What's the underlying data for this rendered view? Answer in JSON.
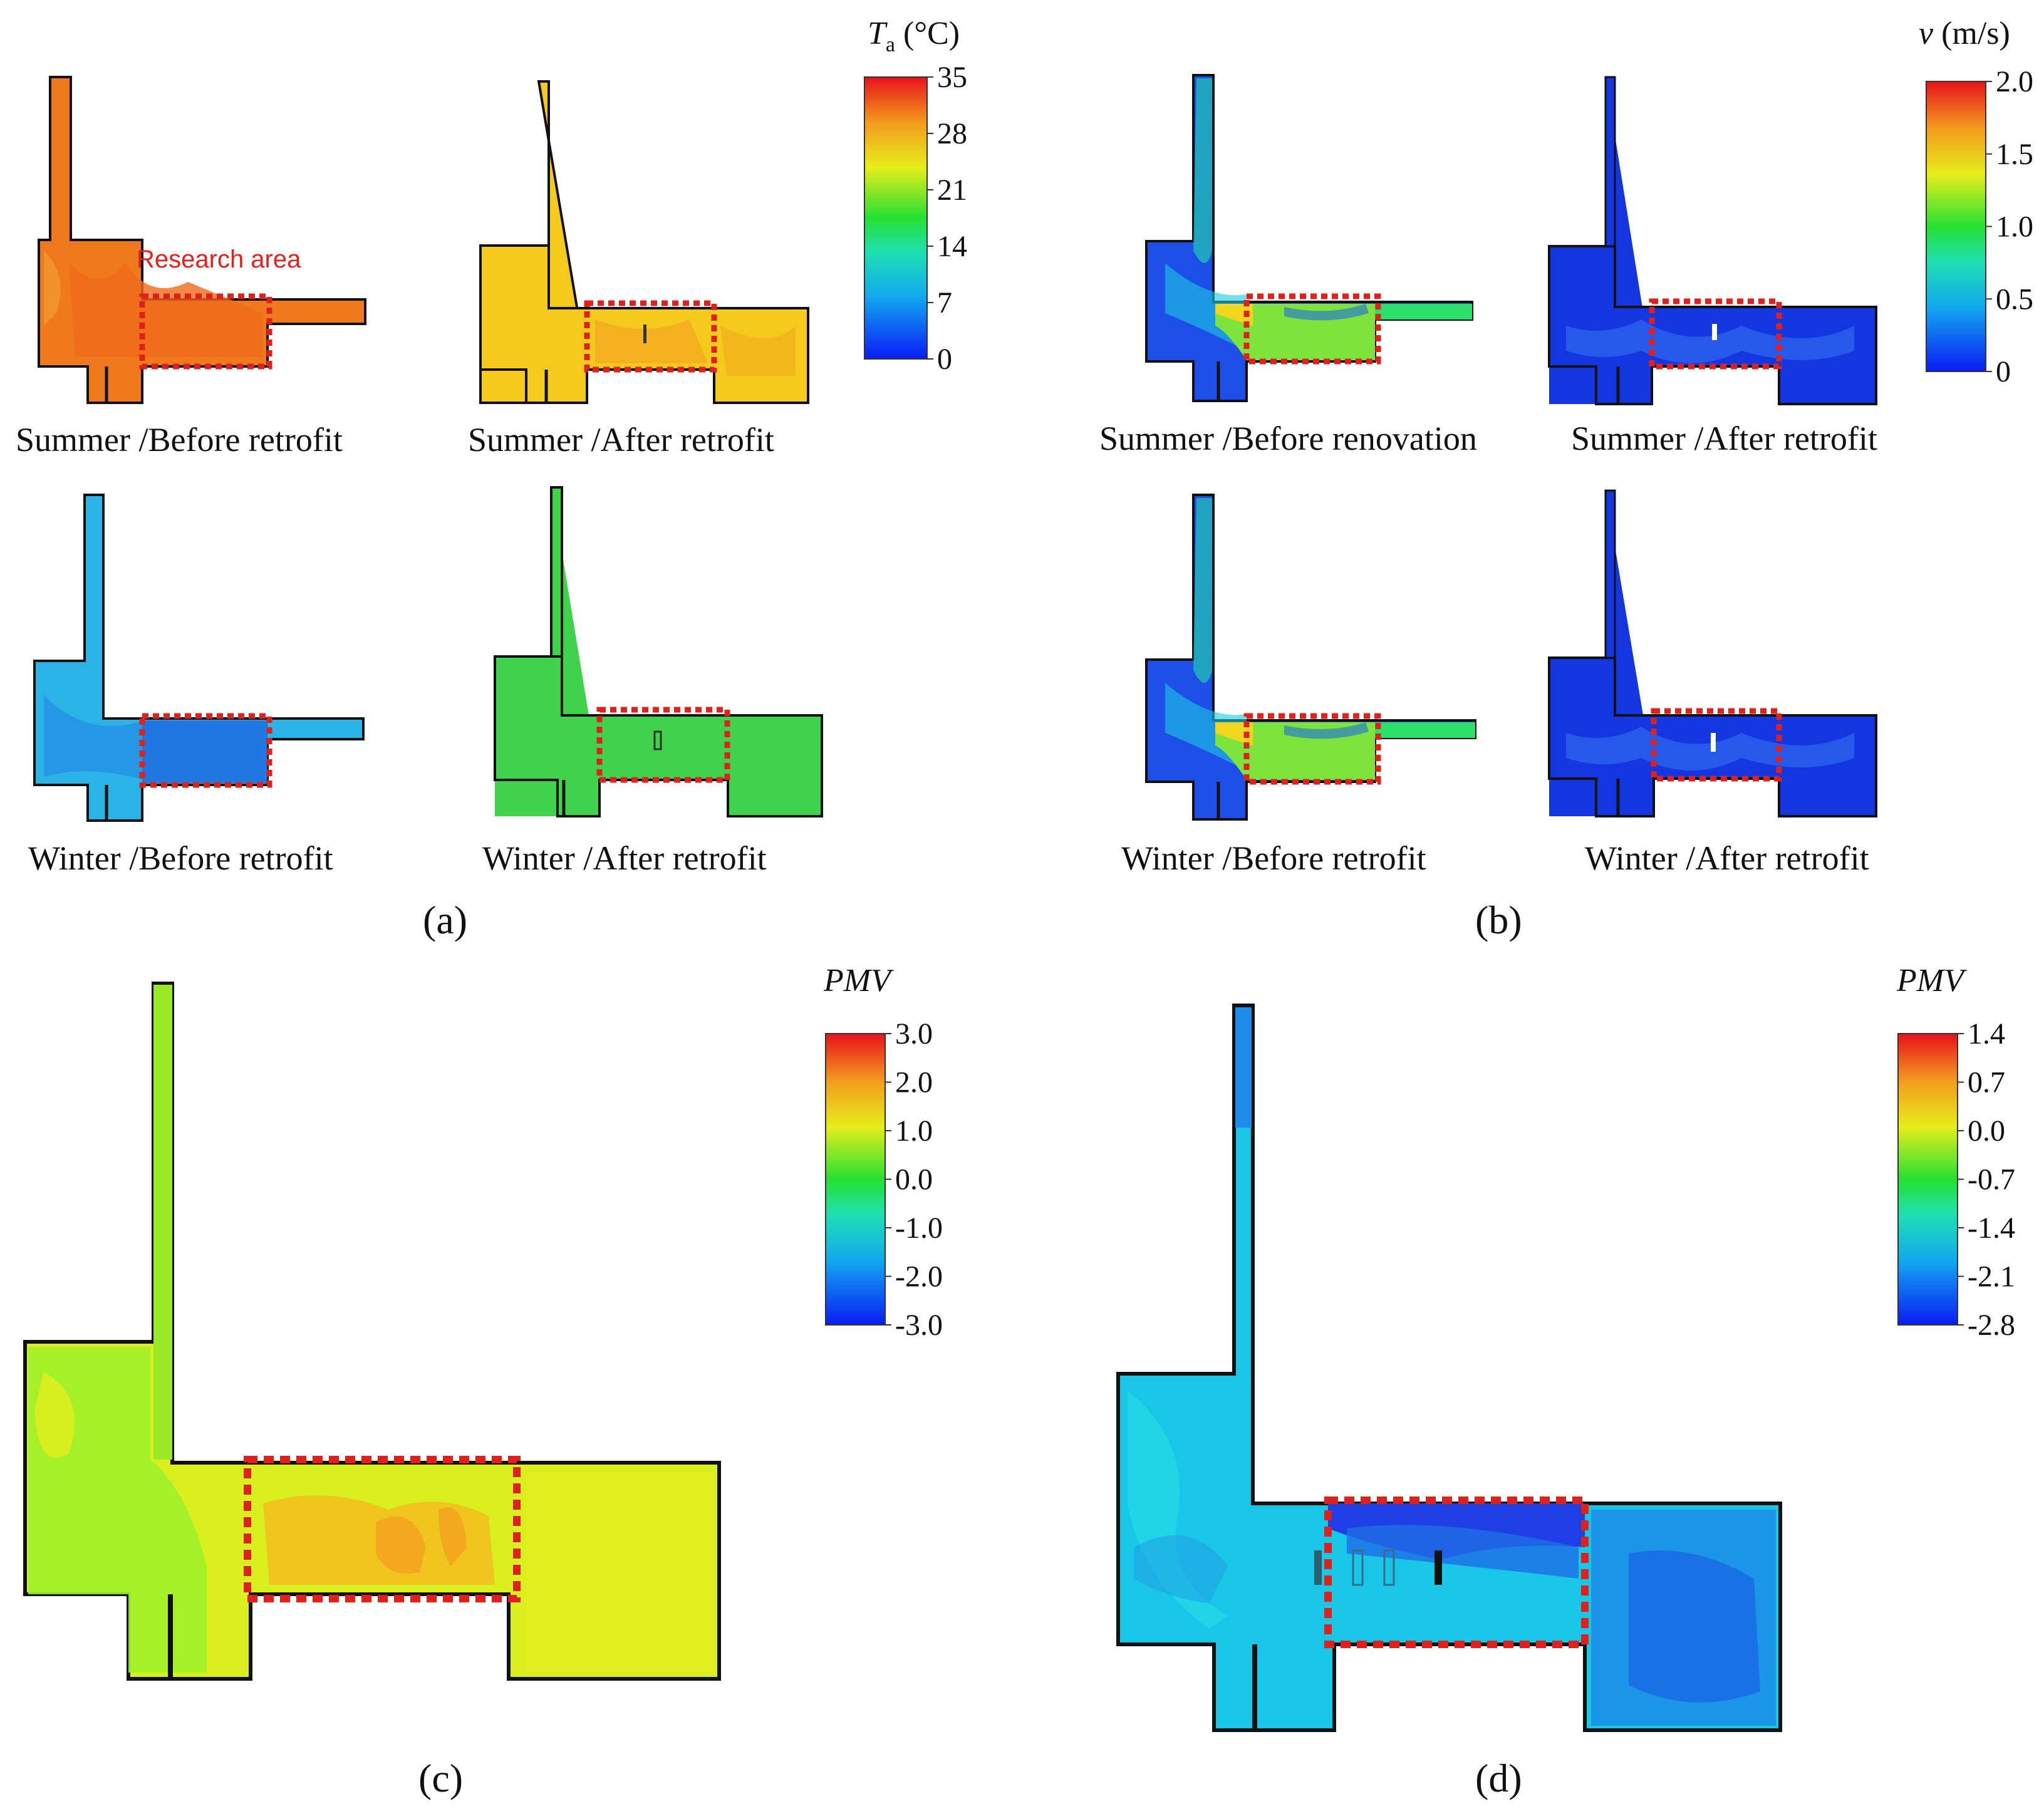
{
  "figure": {
    "panels": [
      {
        "id": "a",
        "letter": "(a)",
        "legend": {
          "title_symbol": "T",
          "title_sub": "a",
          "title_unit": " (°C)",
          "ticks": [
            "35",
            "28",
            "21",
            "14",
            "7",
            "0"
          ]
        },
        "maps": [
          {
            "caption": "Summer /Before retrofit",
            "fill": "#ef7a1e",
            "accent": "#f06a18",
            "annotation": "Research area"
          },
          {
            "caption": "Summer /After retrofit",
            "fill": "#f4cb1d",
            "accent": "#f2a81e"
          },
          {
            "caption": "Winter /Before retrofit",
            "fill": "#2ab3e7",
            "accent": "#1f7fe3"
          },
          {
            "caption": "Winter /After retrofit",
            "fill": "#3fd24a",
            "accent": "#5bd64a"
          }
        ]
      },
      {
        "id": "b",
        "letter": "(b)",
        "legend": {
          "title_symbol": "v",
          "title_unit": " (m/s)",
          "ticks": [
            "2.0",
            "1.5",
            "1.0",
            "0.5",
            "0"
          ]
        },
        "maps": [
          {
            "caption": "Summer /Before renovation",
            "fill": "#1d4fe8",
            "accent": "#7ee33a"
          },
          {
            "caption": "Summer /After retrofit",
            "fill": "#1436e0",
            "accent": "#2f6cf0"
          },
          {
            "caption": "Winter /Before retrofit",
            "fill": "#1d4fe8",
            "accent": "#7ee33a"
          },
          {
            "caption": "Winter /After retrofit",
            "fill": "#1436e0",
            "accent": "#2f6cf0"
          }
        ]
      },
      {
        "id": "c",
        "letter": "(c)",
        "legend": {
          "title": "PMV",
          "ticks": [
            "3.0",
            "2.0",
            "1.0",
            "0.0",
            "-1.0",
            "-2.0",
            "-3.0"
          ]
        },
        "maps": [
          {
            "fill": "#d9ef1f",
            "accent": "#f2a91e"
          }
        ]
      },
      {
        "id": "d",
        "letter": "(d)",
        "legend": {
          "title": "PMV",
          "ticks": [
            "1.4",
            "0.7",
            "0.0",
            "-0.7",
            "-1.4",
            "-2.1",
            "-2.8"
          ]
        },
        "maps": [
          {
            "fill": "#18c6e8",
            "accent": "#1f6ee6"
          }
        ]
      }
    ],
    "colorscale": {
      "low": "#0018ff",
      "c1": "#00c8ff",
      "mid": "#00e040",
      "c3": "#f0f000",
      "high": "#ff1a00"
    }
  }
}
